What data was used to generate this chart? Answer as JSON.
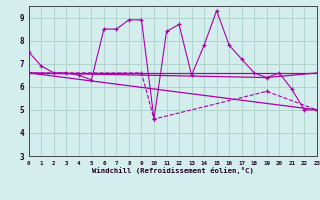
{
  "xlabel": "Windchill (Refroidissement éolien,°C)",
  "background_color": "#d4eeed",
  "grid_color": "#b0d4cc",
  "line_color_main": "#aa00aa",
  "line_color_flat": "#880088",
  "xlim": [
    0,
    23
  ],
  "ylim": [
    3,
    9.5
  ],
  "yticks": [
    3,
    4,
    5,
    6,
    7,
    8,
    9
  ],
  "xticks": [
    0,
    1,
    2,
    3,
    4,
    5,
    6,
    7,
    8,
    9,
    10,
    11,
    12,
    13,
    14,
    15,
    16,
    17,
    18,
    19,
    20,
    21,
    22,
    23
  ],
  "series_main": {
    "x": [
      0,
      1,
      2,
      3,
      4,
      5,
      6,
      7,
      8,
      9,
      10,
      11,
      12,
      13,
      14,
      15,
      16,
      17,
      18,
      19,
      20,
      21,
      22,
      23
    ],
    "y": [
      7.5,
      6.9,
      6.6,
      6.6,
      6.5,
      6.3,
      8.5,
      8.5,
      8.9,
      8.9,
      4.6,
      8.4,
      8.7,
      6.5,
      7.8,
      9.3,
      7.8,
      7.2,
      6.6,
      6.4,
      6.6,
      5.9,
      5.0,
      5.0
    ]
  },
  "series_flat": {
    "x": [
      0,
      23
    ],
    "y": [
      6.6,
      6.6
    ]
  },
  "series_flat2": {
    "x": [
      0,
      19,
      23
    ],
    "y": [
      6.6,
      6.4,
      6.6
    ]
  },
  "series_diag": {
    "x": [
      0,
      9,
      10,
      19,
      23
    ],
    "y": [
      6.6,
      6.6,
      4.6,
      5.8,
      5.0
    ]
  },
  "series_diag2": {
    "x": [
      0,
      23
    ],
    "y": [
      6.6,
      5.0
    ]
  }
}
